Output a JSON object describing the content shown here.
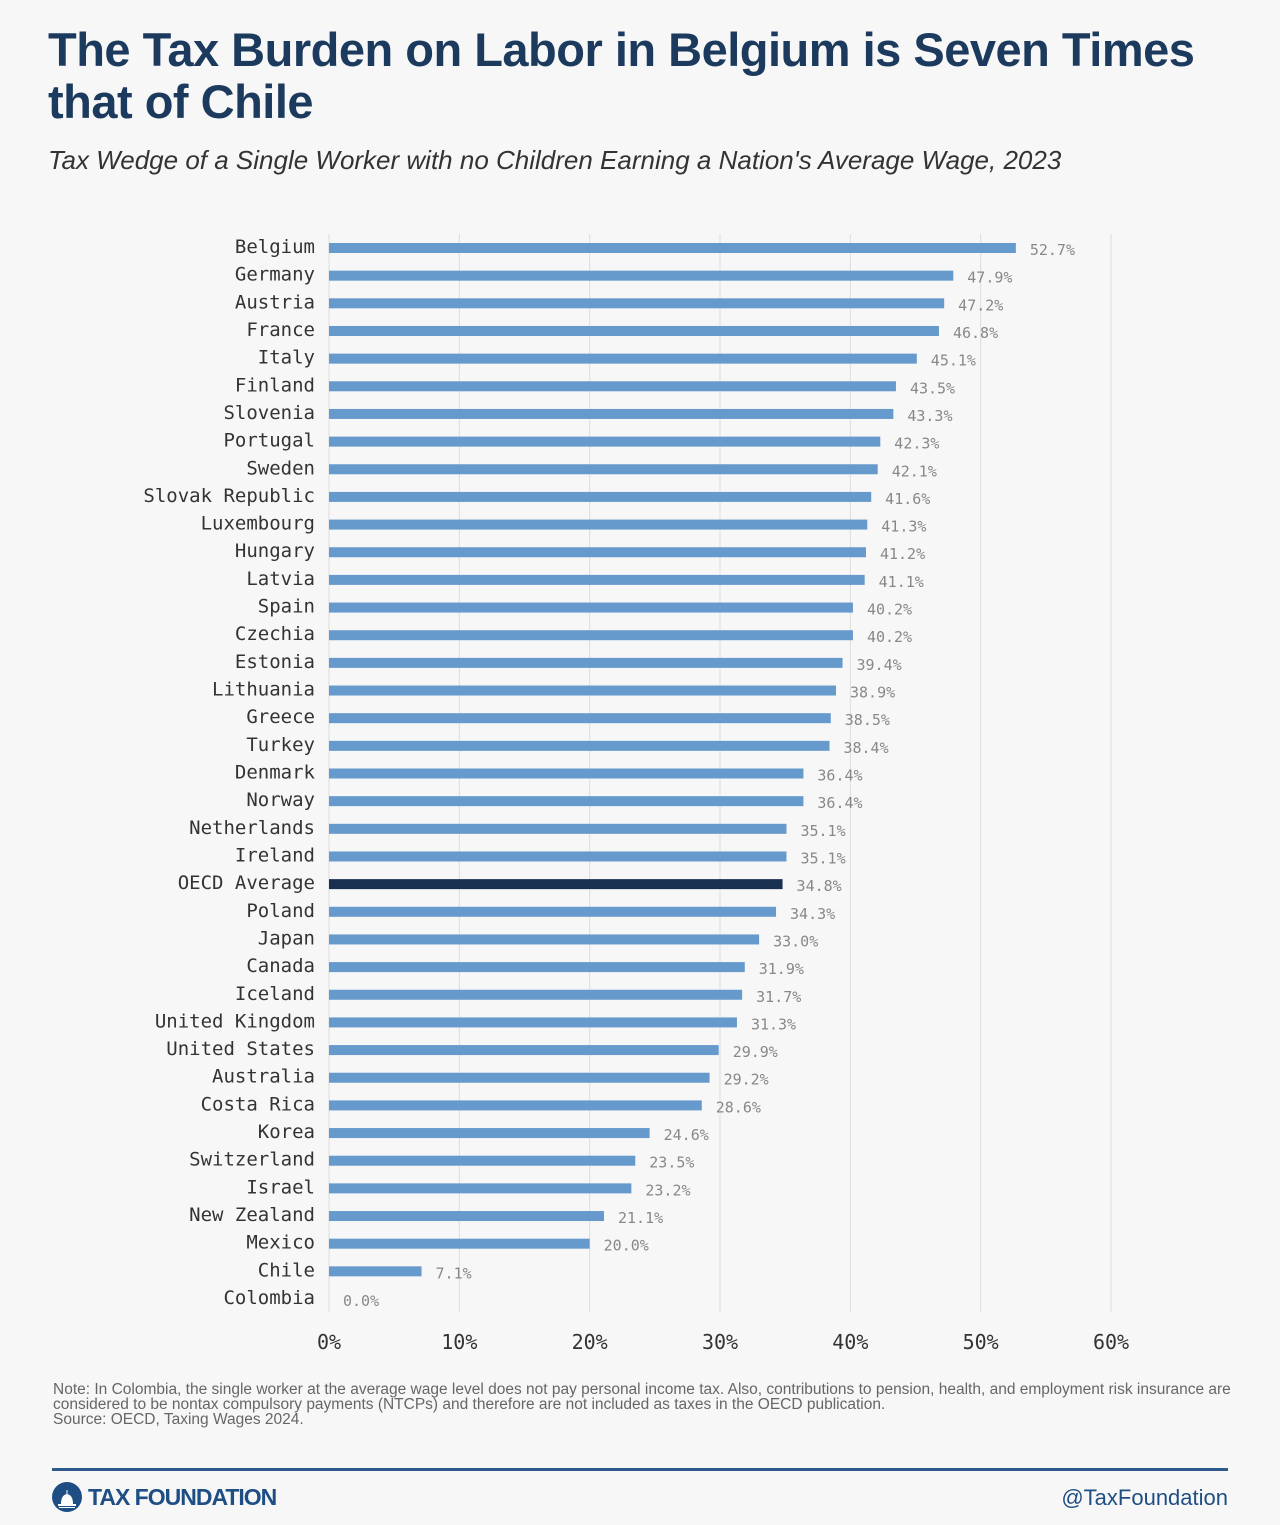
{
  "title": "The Tax Burden on Labor in Belgium is Seven Times that of Chile",
  "subtitle": "Tax Wedge of a Single Worker with no Children Earning a Nation's Average Wage, 2023",
  "chart_data": {
    "type": "bar",
    "orientation": "horizontal",
    "categories": [
      "Belgium",
      "Germany",
      "Austria",
      "France",
      "Italy",
      "Finland",
      "Slovenia",
      "Portugal",
      "Sweden",
      "Slovak Republic",
      "Luxembourg",
      "Hungary",
      "Latvia",
      "Spain",
      "Czechia",
      "Estonia",
      "Lithuania",
      "Greece",
      "Turkey",
      "Denmark",
      "Norway",
      "Netherlands",
      "Ireland",
      "OECD Average",
      "Poland",
      "Japan",
      "Canada",
      "Iceland",
      "United Kingdom",
      "United States",
      "Australia",
      "Costa Rica",
      "Korea",
      "Switzerland",
      "Israel",
      "New Zealand",
      "Mexico",
      "Chile",
      "Colombia"
    ],
    "values": [
      52.7,
      47.9,
      47.2,
      46.8,
      45.1,
      43.5,
      43.3,
      42.3,
      42.1,
      41.6,
      41.3,
      41.2,
      41.1,
      40.2,
      40.2,
      39.4,
      38.9,
      38.5,
      38.4,
      36.4,
      36.4,
      35.1,
      35.1,
      34.8,
      34.3,
      33.0,
      31.9,
      31.7,
      31.3,
      29.9,
      29.2,
      28.6,
      24.6,
      23.5,
      23.2,
      21.1,
      20.0,
      7.1,
      0.0
    ],
    "value_labels": [
      "52.7%",
      "47.9%",
      "47.2%",
      "46.8%",
      "45.1%",
      "43.5%",
      "43.3%",
      "42.3%",
      "42.1%",
      "41.6%",
      "41.3%",
      "41.2%",
      "41.1%",
      "40.2%",
      "40.2%",
      "39.4%",
      "38.9%",
      "38.5%",
      "38.4%",
      "36.4%",
      "36.4%",
      "35.1%",
      "35.1%",
      "34.8%",
      "34.3%",
      "33.0%",
      "31.9%",
      "31.7%",
      "31.3%",
      "29.9%",
      "29.2%",
      "28.6%",
      "24.6%",
      "23.5%",
      "23.2%",
      "21.1%",
      "20.0%",
      "7.1%",
      "0.0%"
    ],
    "highlight": "OECD Average",
    "xlim": [
      0,
      60
    ],
    "xticks": [
      "0%",
      "10%",
      "20%",
      "30%",
      "40%",
      "50%",
      "60%"
    ],
    "grid": "vertical",
    "colors": {
      "bar": "#6699cc",
      "highlight": "#1a3050"
    }
  },
  "note": "Note: In Colombia, the single worker at the average wage level does not pay personal income tax. Also, contributions to pension, health, and employment risk insurance are considered to be nontax compulsory payments (NTCPs) and therefore are not included as taxes in the OECD publication.",
  "source": "Source: OECD, Taxing Wages 2024.",
  "footer": {
    "logo": "TAX FOUNDATION",
    "handle": "@TaxFoundation"
  }
}
